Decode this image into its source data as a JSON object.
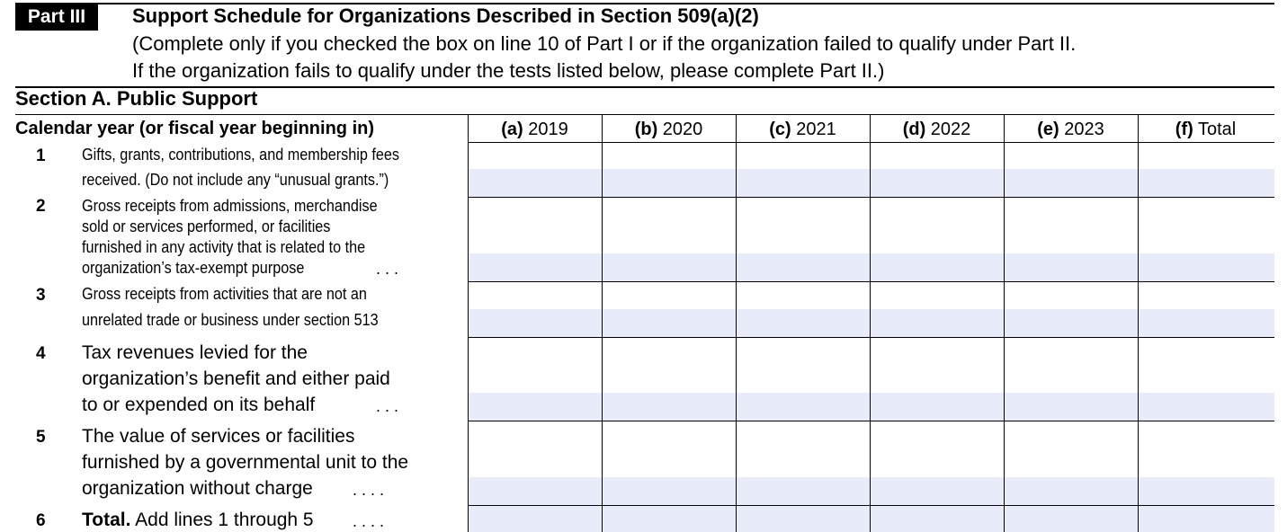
{
  "header": {
    "part_badge": "Part III",
    "title": "Support Schedule for Organizations Described in Section 509(a)(2)",
    "subtitle_line1": "(Complete only if you checked the box on line 10 of Part I or if the organization failed to qualify under Part II.",
    "subtitle_line2": "If the organization fails to qualify under the tests listed below, please complete Part II.)"
  },
  "section": {
    "title": "Section A. Public Support",
    "calendar_label": "Calendar year (or fiscal year beginning in)"
  },
  "columns": [
    {
      "letter": "(a)",
      "label": "2019"
    },
    {
      "letter": "(b)",
      "label": "2020"
    },
    {
      "letter": "(c)",
      "label": "2021"
    },
    {
      "letter": "(d)",
      "label": "2022"
    },
    {
      "letter": "(e)",
      "label": "2023"
    },
    {
      "letter": "(f)",
      "label": "Total"
    }
  ],
  "lines": [
    {
      "num": "1",
      "text": [
        "Gifts, grants, contributions, and membership fees",
        "received. (Do not include any “unusual grants.”)"
      ]
    },
    {
      "num": "2",
      "text": [
        "Gross receipts from admissions, merchandise",
        "sold or services performed, or facilities",
        "furnished in any activity that is related to the",
        "organization’s tax-exempt purpose"
      ],
      "dots": ". . ."
    },
    {
      "num": "3",
      "text": [
        "Gross receipts from activities that are not an",
        "unrelated trade or business under section 513"
      ]
    },
    {
      "num": "4",
      "text": [
        "Tax revenues levied for the",
        "organization’s benefit and either paid",
        "to or expended on its behalf"
      ],
      "dots": ". . ."
    },
    {
      "num": "5",
      "text": [
        "The value of services or facilities",
        "furnished by a governmental unit to the",
        "organization without charge"
      ],
      "dots": ". . . ."
    },
    {
      "num": "6",
      "bold_label": "Total.",
      "text": [
        "Add lines 1 through 5"
      ],
      "dots": ". . . ."
    }
  ]
}
